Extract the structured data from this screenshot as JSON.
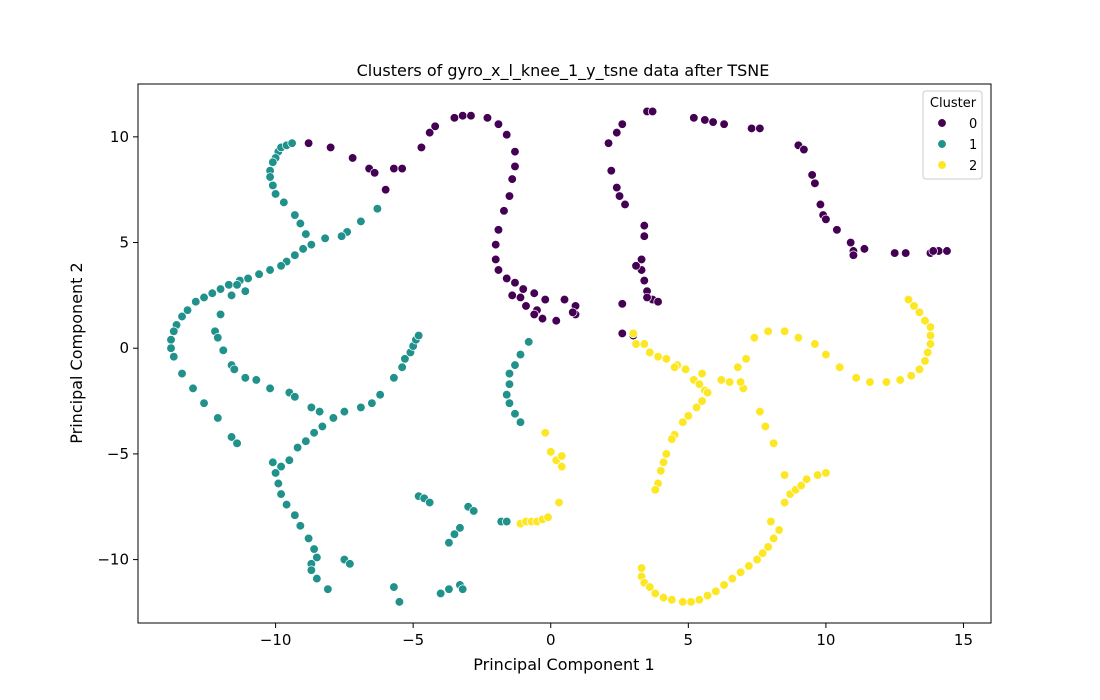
{
  "chart_data": {
    "type": "scatter",
    "title": "Clusters of gyro_x_l_knee_1_y_tsne data after TSNE",
    "xlabel": "Principal Component 1",
    "ylabel": "Principal Component 2",
    "xlim": [
      -15,
      16
    ],
    "ylim": [
      -13,
      12.5
    ],
    "xticks": [
      -10,
      -5,
      0,
      5,
      10,
      15
    ],
    "yticks": [
      -10,
      -5,
      0,
      5,
      10
    ],
    "xtick_labels": [
      "−10",
      "−5",
      "0",
      "5",
      "10",
      "15"
    ],
    "ytick_labels": [
      "−10",
      "−5",
      "0",
      "5",
      "10"
    ],
    "grid": false,
    "legend": {
      "title": "Cluster",
      "placement": "top-right"
    },
    "series": [
      {
        "name": "0",
        "color": "#440154",
        "points": [
          [
            -8.8,
            9.7
          ],
          [
            -8.0,
            9.5
          ],
          [
            -7.2,
            9.0
          ],
          [
            -6.6,
            8.5
          ],
          [
            -6.4,
            8.3
          ],
          [
            -5.7,
            8.5
          ],
          [
            -5.4,
            8.5
          ],
          [
            -6.0,
            7.5
          ],
          [
            -4.7,
            9.5
          ],
          [
            -4.4,
            10.2
          ],
          [
            -4.2,
            10.5
          ],
          [
            -3.5,
            10.9
          ],
          [
            -3.2,
            11.0
          ],
          [
            -2.9,
            11.0
          ],
          [
            -2.3,
            10.9
          ],
          [
            -1.9,
            10.6
          ],
          [
            -1.6,
            10.1
          ],
          [
            -1.3,
            9.3
          ],
          [
            -1.3,
            8.6
          ],
          [
            -1.4,
            8.0
          ],
          [
            -1.5,
            7.2
          ],
          [
            -1.7,
            6.5
          ],
          [
            -1.9,
            5.6
          ],
          [
            -2.0,
            4.9
          ],
          [
            -2.0,
            4.2
          ],
          [
            -1.9,
            3.7
          ],
          [
            -1.6,
            3.3
          ],
          [
            -1.3,
            3.1
          ],
          [
            -1.0,
            2.8
          ],
          [
            -0.6,
            2.6
          ],
          [
            -0.2,
            2.3
          ],
          [
            -0.5,
            1.8
          ],
          [
            -0.3,
            1.4
          ],
          [
            0.2,
            1.3
          ],
          [
            0.5,
            2.3
          ],
          [
            0.9,
            2.0
          ],
          [
            0.9,
            1.6
          ],
          [
            0.8,
            1.7
          ],
          [
            -1.4,
            2.5
          ],
          [
            -1.1,
            2.4
          ],
          [
            -0.9,
            2.0
          ],
          [
            -0.6,
            1.6
          ],
          [
            2.1,
            9.7
          ],
          [
            2.4,
            10.2
          ],
          [
            2.6,
            10.6
          ],
          [
            3.5,
            11.2
          ],
          [
            3.7,
            11.2
          ],
          [
            2.2,
            8.4
          ],
          [
            2.4,
            7.6
          ],
          [
            2.5,
            7.2
          ],
          [
            2.7,
            6.8
          ],
          [
            3.4,
            5.8
          ],
          [
            3.4,
            5.3
          ],
          [
            3.3,
            4.2
          ],
          [
            3.3,
            3.7
          ],
          [
            3.4,
            3.2
          ],
          [
            3.5,
            2.7
          ],
          [
            3.7,
            2.3
          ],
          [
            3.9,
            2.2
          ],
          [
            3.1,
            3.9
          ],
          [
            2.6,
            2.1
          ],
          [
            2.6,
            0.7
          ],
          [
            3.0,
            0.6
          ],
          [
            3.5,
            2.4
          ],
          [
            5.2,
            10.9
          ],
          [
            5.6,
            10.8
          ],
          [
            5.9,
            10.7
          ],
          [
            6.3,
            10.6
          ],
          [
            7.3,
            10.4
          ],
          [
            7.6,
            10.4
          ],
          [
            9.0,
            9.6
          ],
          [
            9.2,
            9.4
          ],
          [
            9.5,
            8.2
          ],
          [
            9.6,
            7.8
          ],
          [
            9.8,
            6.8
          ],
          [
            9.9,
            6.3
          ],
          [
            10.0,
            6.1
          ],
          [
            10.4,
            5.6
          ],
          [
            10.9,
            5.0
          ],
          [
            11.0,
            4.6
          ],
          [
            11.0,
            4.4
          ],
          [
            11.4,
            4.7
          ],
          [
            12.5,
            4.5
          ],
          [
            12.9,
            4.5
          ],
          [
            13.8,
            4.5
          ],
          [
            14.1,
            4.6
          ],
          [
            14.4,
            4.6
          ],
          [
            13.9,
            4.6
          ]
        ]
      },
      {
        "name": "1",
        "color": "#21918c",
        "points": [
          [
            -9.9,
            9.3
          ],
          [
            -10.0,
            9.0
          ],
          [
            -10.1,
            8.8
          ],
          [
            -10.2,
            8.4
          ],
          [
            -10.2,
            8.1
          ],
          [
            -10.1,
            7.7
          ],
          [
            -10.0,
            7.3
          ],
          [
            -9.7,
            6.9
          ],
          [
            -9.3,
            6.3
          ],
          [
            -9.1,
            5.9
          ],
          [
            -8.9,
            5.4
          ],
          [
            -9.8,
            9.5
          ],
          [
            -9.6,
            9.6
          ],
          [
            -9.4,
            9.7
          ],
          [
            -8.7,
            4.9
          ],
          [
            -9.0,
            4.7
          ],
          [
            -9.3,
            4.4
          ],
          [
            -9.6,
            4.1
          ],
          [
            -9.8,
            3.9
          ],
          [
            -10.2,
            3.7
          ],
          [
            -10.6,
            3.5
          ],
          [
            -11.0,
            3.3
          ],
          [
            -11.3,
            3.2
          ],
          [
            -11.7,
            3.0
          ],
          [
            -12.0,
            2.8
          ],
          [
            -12.3,
            2.6
          ],
          [
            -12.6,
            2.4
          ],
          [
            -12.9,
            2.2
          ],
          [
            -13.2,
            1.8
          ],
          [
            -13.4,
            1.5
          ],
          [
            -13.6,
            1.1
          ],
          [
            -13.7,
            0.8
          ],
          [
            -13.8,
            0.4
          ],
          [
            -13.8,
            0.0
          ],
          [
            -13.7,
            -0.4
          ],
          [
            -8.2,
            5.2
          ],
          [
            -7.4,
            5.5
          ],
          [
            -6.9,
            6.0
          ],
          [
            -6.3,
            6.6
          ],
          [
            -7.6,
            5.3
          ],
          [
            -13.4,
            -1.2
          ],
          [
            -13.0,
            -1.9
          ],
          [
            -12.6,
            -2.6
          ],
          [
            -12.1,
            -3.3
          ],
          [
            -11.6,
            -4.2
          ],
          [
            -11.4,
            -4.5
          ],
          [
            -11.4,
            3.0
          ],
          [
            -11.1,
            2.7
          ],
          [
            -11.6,
            2.5
          ],
          [
            -12.0,
            1.6
          ],
          [
            -12.2,
            0.8
          ],
          [
            -12.1,
            0.5
          ],
          [
            -11.9,
            -0.1
          ],
          [
            -11.6,
            -0.8
          ],
          [
            -11.5,
            -1.0
          ],
          [
            -11.1,
            -1.4
          ],
          [
            -10.7,
            -1.5
          ],
          [
            -10.2,
            -1.9
          ],
          [
            -9.5,
            -2.1
          ],
          [
            -9.3,
            -2.3
          ],
          [
            -8.7,
            -2.8
          ],
          [
            -8.4,
            -3.0
          ],
          [
            -7.5,
            -3.0
          ],
          [
            -6.9,
            -2.8
          ],
          [
            -6.5,
            -2.6
          ],
          [
            -6.2,
            -2.2
          ],
          [
            -5.7,
            -1.4
          ],
          [
            -5.4,
            -0.9
          ],
          [
            -5.3,
            -0.5
          ],
          [
            -5.1,
            -0.2
          ],
          [
            -5.0,
            0.1
          ],
          [
            -4.9,
            0.4
          ],
          [
            -4.8,
            0.6
          ],
          [
            -7.9,
            -3.3
          ],
          [
            -8.3,
            -3.7
          ],
          [
            -8.6,
            -4.0
          ],
          [
            -8.9,
            -4.4
          ],
          [
            -9.2,
            -4.7
          ],
          [
            -9.5,
            -5.3
          ],
          [
            -9.8,
            -5.6
          ],
          [
            -10.1,
            -5.4
          ],
          [
            -10.0,
            -5.9
          ],
          [
            -9.9,
            -6.4
          ],
          [
            -9.8,
            -6.9
          ],
          [
            -9.6,
            -7.4
          ],
          [
            -9.3,
            -7.9
          ],
          [
            -9.1,
            -8.4
          ],
          [
            -8.8,
            -9.0
          ],
          [
            -8.6,
            -9.5
          ],
          [
            -8.5,
            -9.9
          ],
          [
            -8.7,
            -10.2
          ],
          [
            -8.7,
            -10.5
          ],
          [
            -8.5,
            -10.9
          ],
          [
            -8.1,
            -11.4
          ],
          [
            -7.5,
            -10.0
          ],
          [
            -7.3,
            -10.2
          ],
          [
            -5.7,
            -11.3
          ],
          [
            -5.5,
            -12.0
          ],
          [
            -4.8,
            -7.0
          ],
          [
            -4.6,
            -7.1
          ],
          [
            -4.4,
            -7.3
          ],
          [
            -3.0,
            -7.5
          ],
          [
            -2.8,
            -7.7
          ],
          [
            -3.3,
            -8.5
          ],
          [
            -3.5,
            -8.8
          ],
          [
            -3.7,
            -9.2
          ],
          [
            -4.0,
            -11.6
          ],
          [
            -3.7,
            -11.4
          ],
          [
            -3.3,
            -11.2
          ],
          [
            -3.2,
            -11.4
          ],
          [
            -0.8,
            0.3
          ],
          [
            -1.1,
            -0.3
          ],
          [
            -1.3,
            -0.8
          ],
          [
            -1.5,
            -1.2
          ],
          [
            -1.5,
            -1.7
          ],
          [
            -1.6,
            -2.2
          ],
          [
            -1.5,
            -2.6
          ],
          [
            -1.3,
            -3.1
          ],
          [
            -1.1,
            -3.5
          ],
          [
            -1.8,
            -8.2
          ],
          [
            -1.6,
            -8.2
          ]
        ]
      },
      {
        "name": "2",
        "color": "#fde725",
        "points": [
          [
            -0.2,
            -4.0
          ],
          [
            0.0,
            -4.9
          ],
          [
            0.2,
            -5.3
          ],
          [
            0.4,
            -5.1
          ],
          [
            0.4,
            -5.6
          ],
          [
            0.3,
            -7.3
          ],
          [
            -1.1,
            -8.3
          ],
          [
            -0.9,
            -8.2
          ],
          [
            -0.7,
            -8.2
          ],
          [
            -0.5,
            -8.2
          ],
          [
            -0.3,
            -8.1
          ],
          [
            -0.1,
            -8.0
          ],
          [
            3.0,
            0.7
          ],
          [
            3.1,
            0.2
          ],
          [
            3.4,
            0.2
          ],
          [
            3.6,
            -0.2
          ],
          [
            3.9,
            -0.4
          ],
          [
            4.2,
            -0.5
          ],
          [
            4.6,
            -0.8
          ],
          [
            4.9,
            -1.0
          ],
          [
            5.2,
            -1.5
          ],
          [
            5.4,
            -1.7
          ],
          [
            5.6,
            -2.0
          ],
          [
            5.7,
            -2.1
          ],
          [
            5.5,
            -2.5
          ],
          [
            5.3,
            -2.8
          ],
          [
            5.0,
            -3.2
          ],
          [
            4.8,
            -3.5
          ],
          [
            4.5,
            -4.1
          ],
          [
            4.4,
            -4.3
          ],
          [
            4.2,
            -5.0
          ],
          [
            4.1,
            -5.4
          ],
          [
            4.0,
            -5.8
          ],
          [
            3.9,
            -6.4
          ],
          [
            3.8,
            -6.7
          ],
          [
            3.3,
            -10.4
          ],
          [
            3.3,
            -10.8
          ],
          [
            3.4,
            -11.1
          ],
          [
            3.6,
            -11.3
          ],
          [
            3.8,
            -11.6
          ],
          [
            4.1,
            -11.8
          ],
          [
            4.4,
            -11.9
          ],
          [
            4.8,
            -12.0
          ],
          [
            5.1,
            -12.0
          ],
          [
            5.4,
            -11.9
          ],
          [
            5.7,
            -11.7
          ],
          [
            6.0,
            -11.5
          ],
          [
            6.3,
            -11.2
          ],
          [
            6.6,
            -10.9
          ],
          [
            6.9,
            -10.6
          ],
          [
            7.2,
            -10.3
          ],
          [
            7.5,
            -10.0
          ],
          [
            7.7,
            -9.7
          ],
          [
            7.9,
            -9.4
          ],
          [
            8.1,
            -9.0
          ],
          [
            8.3,
            -8.6
          ],
          [
            8.0,
            -8.2
          ],
          [
            8.5,
            -7.3
          ],
          [
            8.7,
            -6.9
          ],
          [
            8.9,
            -6.7
          ],
          [
            9.1,
            -6.5
          ],
          [
            9.3,
            -6.2
          ],
          [
            9.7,
            -6.0
          ],
          [
            10.0,
            -5.9
          ],
          [
            8.5,
            -6.0
          ],
          [
            8.1,
            -4.5
          ],
          [
            7.8,
            -3.7
          ],
          [
            7.6,
            -3.0
          ],
          [
            7.0,
            -1.9
          ],
          [
            6.9,
            -1.6
          ],
          [
            6.5,
            -1.6
          ],
          [
            6.2,
            -1.5
          ],
          [
            6.8,
            -0.9
          ],
          [
            7.1,
            -0.5
          ],
          [
            7.4,
            0.5
          ],
          [
            7.9,
            0.8
          ],
          [
            8.5,
            0.8
          ],
          [
            9.0,
            0.5
          ],
          [
            9.6,
            0.2
          ],
          [
            10.0,
            -0.3
          ],
          [
            10.5,
            -0.9
          ],
          [
            11.1,
            -1.4
          ],
          [
            11.6,
            -1.6
          ],
          [
            12.2,
            -1.6
          ],
          [
            12.7,
            -1.5
          ],
          [
            13.1,
            -1.3
          ],
          [
            13.4,
            -1.0
          ],
          [
            13.6,
            -0.6
          ],
          [
            13.7,
            -0.2
          ],
          [
            13.8,
            0.2
          ],
          [
            13.8,
            0.6
          ],
          [
            13.8,
            1.0
          ],
          [
            13.6,
            1.3
          ],
          [
            13.4,
            1.7
          ],
          [
            13.2,
            2.0
          ],
          [
            13.0,
            2.3
          ],
          [
            5.5,
            -1.2
          ],
          [
            4.5,
            -0.9
          ]
        ]
      }
    ]
  }
}
